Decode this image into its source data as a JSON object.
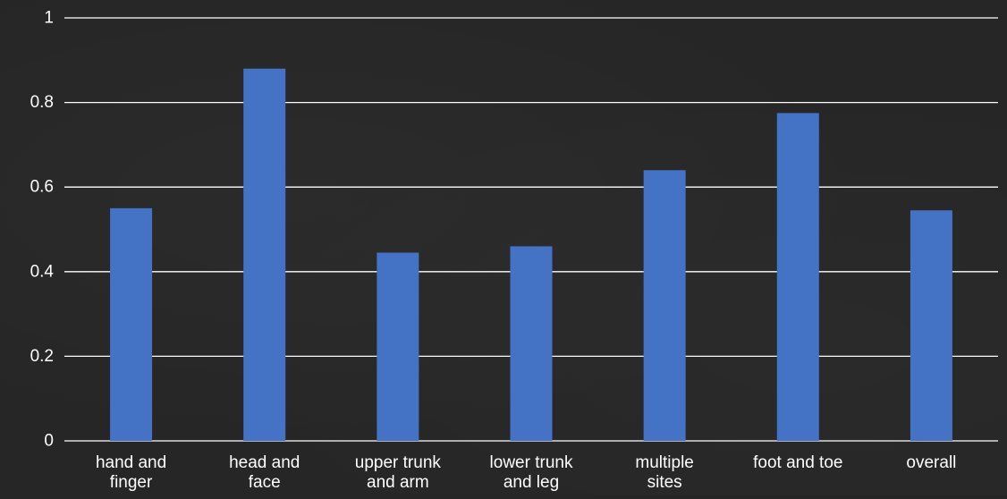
{
  "chart_data": {
    "type": "bar",
    "categories": [
      [
        "hand and",
        "finger"
      ],
      [
        "head and",
        "face"
      ],
      [
        "upper trunk",
        "and arm"
      ],
      [
        "lower trunk",
        "and leg"
      ],
      [
        "multiple",
        "sites"
      ],
      [
        "foot and toe"
      ],
      [
        "overall"
      ]
    ],
    "values": [
      0.55,
      0.88,
      0.445,
      0.46,
      0.64,
      0.775,
      0.545
    ],
    "ylim": [
      0,
      1
    ],
    "yticks": [
      0,
      0.2,
      0.4,
      0.6,
      0.8,
      1
    ],
    "ytick_labels": [
      "0",
      "0.2",
      "0.4",
      "0.6",
      "0.8",
      "1"
    ],
    "title": "",
    "xlabel": "",
    "ylabel": "",
    "grid": true,
    "legend": "none",
    "colors": {
      "bar": "#4472c4",
      "gridline": "#ffffff",
      "text": "#ffffff",
      "background": "#262626"
    }
  }
}
